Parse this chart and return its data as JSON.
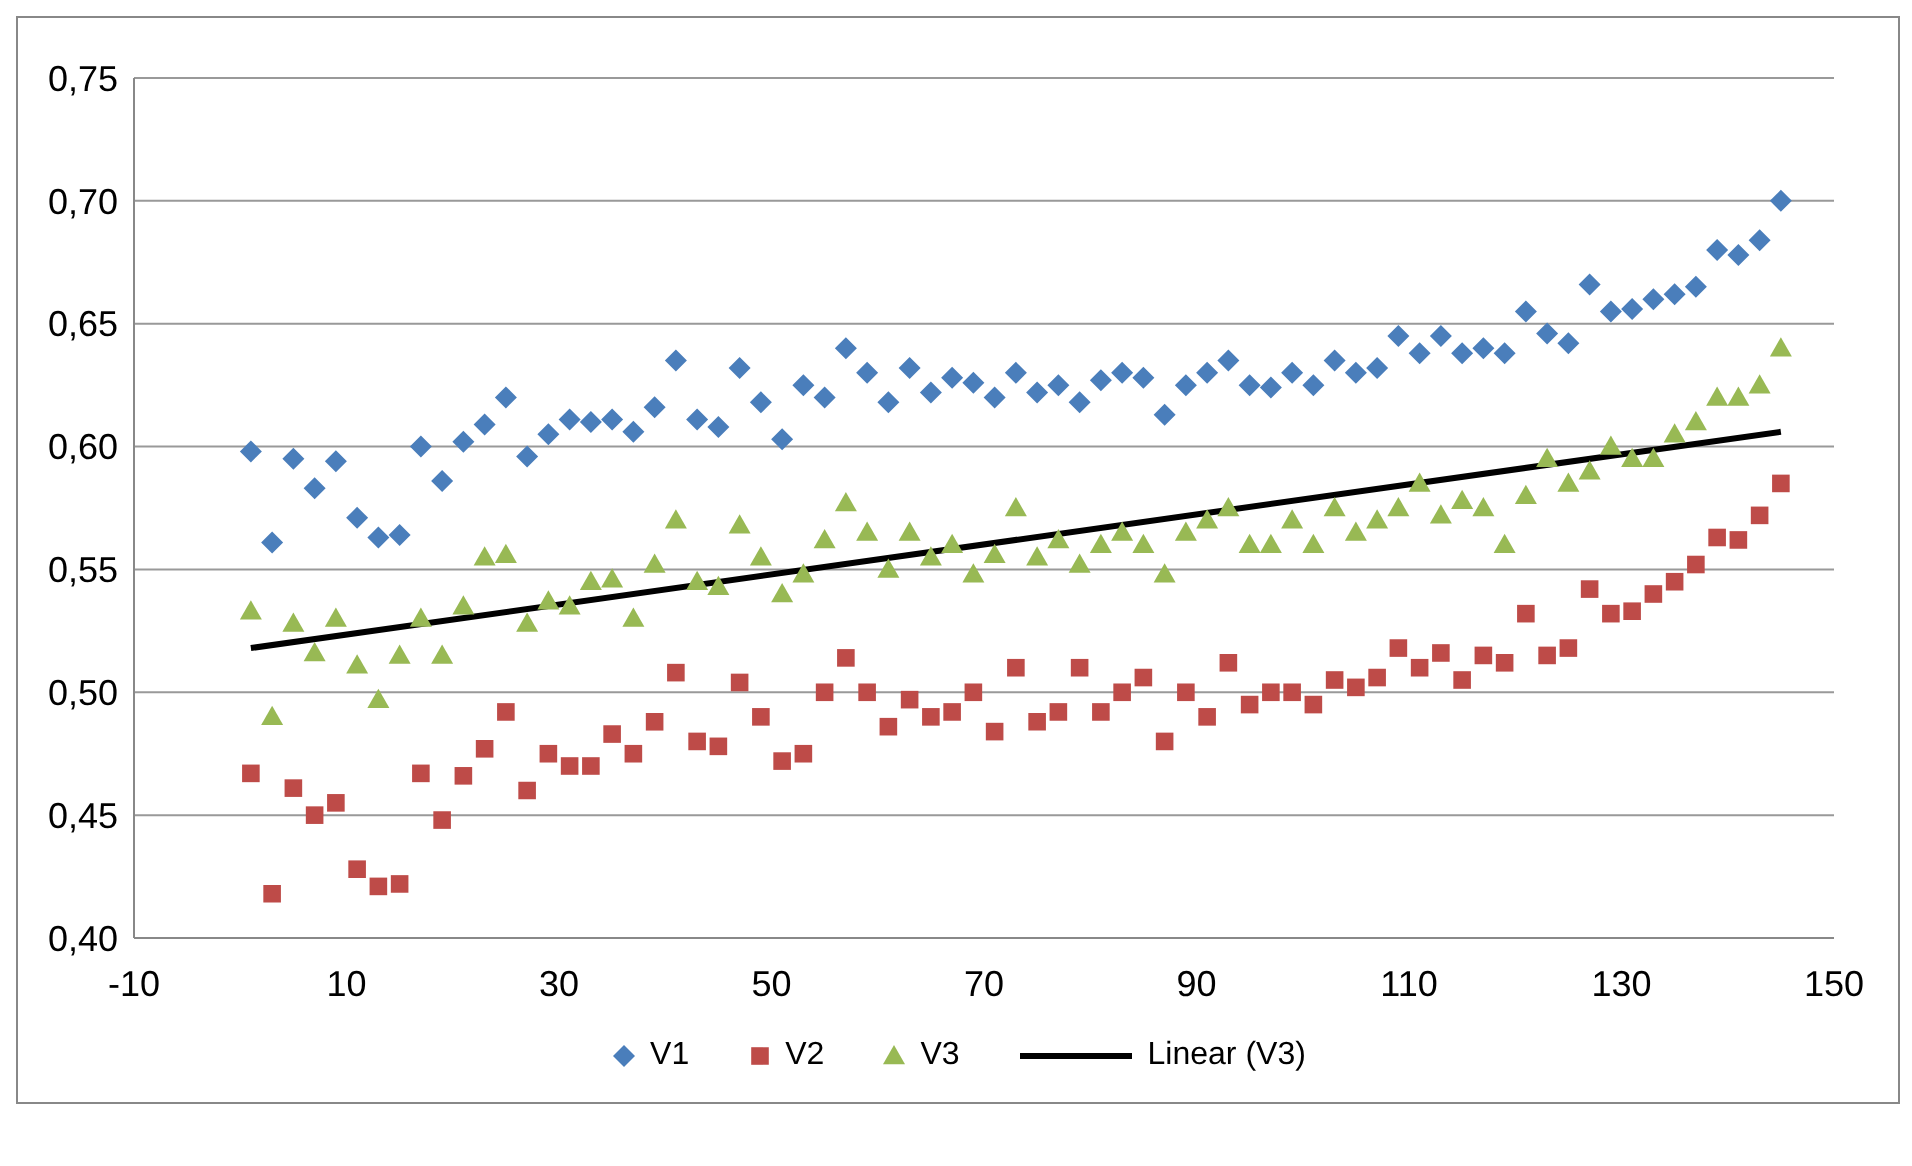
{
  "chart_data": {
    "type": "scatter",
    "xlim": [
      -10,
      150
    ],
    "xticks": [
      -10,
      10,
      30,
      50,
      70,
      90,
      110,
      130,
      150
    ],
    "ylim": [
      0.4,
      0.75
    ],
    "yticks": [
      {
        "value": 0.4,
        "label": "0,40"
      },
      {
        "value": 0.45,
        "label": "0,45"
      },
      {
        "value": 0.5,
        "label": "0,50"
      },
      {
        "value": 0.55,
        "label": "0,55"
      },
      {
        "value": 0.6,
        "label": "0,60"
      },
      {
        "value": 0.65,
        "label": "0,65"
      },
      {
        "value": 0.7,
        "label": "0,70"
      },
      {
        "value": 0.75,
        "label": "0,75"
      }
    ],
    "grid": "y",
    "legend": "bottom",
    "x": [
      1,
      3,
      5,
      7,
      9,
      11,
      13,
      15,
      17,
      19,
      21,
      23,
      25,
      27,
      29,
      31,
      33,
      35,
      37,
      39,
      41,
      43,
      45,
      47,
      49,
      51,
      53,
      55,
      57,
      59,
      61,
      63,
      65,
      67,
      69,
      71,
      73,
      75,
      77,
      79,
      81,
      83,
      85,
      87,
      89,
      91,
      93,
      95,
      97,
      99,
      101,
      103,
      105,
      107,
      109,
      111,
      113,
      115,
      117,
      119,
      121,
      123,
      125,
      127,
      129,
      131,
      133,
      135,
      137,
      139,
      141,
      143,
      145
    ],
    "series": [
      {
        "name": "V1",
        "color": "#4a7ebb",
        "marker": "diamond",
        "values": [
          0.598,
          0.561,
          0.595,
          0.583,
          0.594,
          0.571,
          0.563,
          0.564,
          0.6,
          0.586,
          0.602,
          0.609,
          0.62,
          0.596,
          0.605,
          0.611,
          0.61,
          0.611,
          0.606,
          0.616,
          0.635,
          0.611,
          0.608,
          0.632,
          0.618,
          0.603,
          0.625,
          0.62,
          0.64,
          0.63,
          0.618,
          0.632,
          0.622,
          0.628,
          0.626,
          0.62,
          0.63,
          0.622,
          0.625,
          0.618,
          0.627,
          0.63,
          0.628,
          0.613,
          0.625,
          0.63,
          0.635,
          0.625,
          0.624,
          0.63,
          0.625,
          0.635,
          0.63,
          0.632,
          0.645,
          0.638,
          0.645,
          0.638,
          0.64,
          0.638,
          0.655,
          0.646,
          0.642,
          0.666,
          0.655,
          0.656,
          0.66,
          0.662,
          0.665,
          0.68,
          0.678,
          0.684,
          0.7
        ]
      },
      {
        "name": "V2",
        "color": "#be4b48",
        "marker": "square",
        "values": [
          0.467,
          0.418,
          0.461,
          0.45,
          0.455,
          0.428,
          0.421,
          0.422,
          0.467,
          0.448,
          0.466,
          0.477,
          0.492,
          0.46,
          0.475,
          0.47,
          0.47,
          0.483,
          0.475,
          0.488,
          0.508,
          0.48,
          0.478,
          0.504,
          0.49,
          0.472,
          0.475,
          0.5,
          0.514,
          0.5,
          0.486,
          0.497,
          0.49,
          0.492,
          0.5,
          0.484,
          0.51,
          0.488,
          0.492,
          0.51,
          0.492,
          0.5,
          0.506,
          0.48,
          0.5,
          0.49,
          0.512,
          0.495,
          0.5,
          0.5,
          0.495,
          0.505,
          0.502,
          0.506,
          0.518,
          0.51,
          0.516,
          0.505,
          0.515,
          0.512,
          0.532,
          0.515,
          0.518,
          0.542,
          0.532,
          0.533,
          0.54,
          0.545,
          0.552,
          0.563,
          0.562,
          0.572,
          0.585
        ]
      },
      {
        "name": "V3",
        "color": "#98b954",
        "marker": "triangle",
        "values": [
          0.533,
          0.49,
          0.528,
          0.516,
          0.53,
          0.511,
          0.497,
          0.515,
          0.53,
          0.515,
          0.535,
          0.555,
          0.556,
          0.528,
          0.537,
          0.535,
          0.545,
          0.546,
          0.53,
          0.552,
          0.57,
          0.545,
          0.543,
          0.568,
          0.555,
          0.54,
          0.548,
          0.562,
          0.577,
          0.565,
          0.55,
          0.565,
          0.555,
          0.56,
          0.548,
          0.556,
          0.575,
          0.555,
          0.562,
          0.552,
          0.56,
          0.565,
          0.56,
          0.548,
          0.565,
          0.57,
          0.575,
          0.56,
          0.56,
          0.57,
          0.56,
          0.575,
          0.565,
          0.57,
          0.575,
          0.585,
          0.572,
          0.578,
          0.575,
          0.56,
          0.58,
          0.595,
          0.585,
          0.59,
          0.6,
          0.595,
          0.595,
          0.605,
          0.61,
          0.62,
          0.62,
          0.625,
          0.64
        ]
      },
      {
        "name": "Linear (V3)",
        "type": "line",
        "color": "#000000",
        "marker": "none",
        "line_style": "solid",
        "x": [
          1,
          145
        ],
        "values": [
          0.518,
          0.606
        ]
      }
    ]
  }
}
